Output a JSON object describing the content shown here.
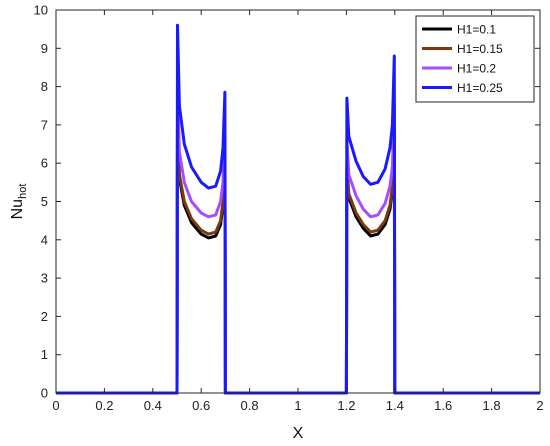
{
  "chart_data": {
    "type": "line",
    "title": "",
    "xlabel": "X",
    "ylabel_main": "Nu",
    "ylabel_sub": "hot",
    "xlim": [
      0,
      2
    ],
    "ylim": [
      0,
      10
    ],
    "xticks": [
      "0",
      "0.2",
      "0.4",
      "0.6",
      "0.8",
      "1",
      "1.2",
      "1.4",
      "1.6",
      "1.8",
      "2"
    ],
    "yticks": [
      "0",
      "1",
      "2",
      "3",
      "4",
      "5",
      "6",
      "7",
      "8",
      "9",
      "10"
    ],
    "grid": false,
    "legend_position": "top-right",
    "series": [
      {
        "name": "H1=0.1",
        "color": "#000000",
        "x": [
          0,
          0.5,
          0.502,
          0.51,
          0.53,
          0.56,
          0.6,
          0.63,
          0.66,
          0.68,
          0.69,
          0.698,
          0.7,
          1.2,
          1.202,
          1.21,
          1.24,
          1.27,
          1.3,
          1.33,
          1.36,
          1.38,
          1.39,
          1.398,
          1.4,
          2
        ],
        "y": [
          0,
          0,
          7.0,
          5.6,
          4.9,
          4.45,
          4.15,
          4.05,
          4.1,
          4.4,
          4.9,
          6.1,
          0,
          0,
          5.9,
          5.1,
          4.6,
          4.3,
          4.1,
          4.15,
          4.4,
          4.8,
          5.3,
          6.8,
          0,
          0
        ]
      },
      {
        "name": "H1=0.15",
        "color": "#7a3a0c",
        "x": [
          0,
          0.5,
          0.502,
          0.51,
          0.53,
          0.56,
          0.6,
          0.63,
          0.66,
          0.68,
          0.69,
          0.698,
          0.7,
          1.2,
          1.202,
          1.21,
          1.24,
          1.27,
          1.3,
          1.33,
          1.36,
          1.38,
          1.39,
          1.398,
          1.4,
          2
        ],
        "y": [
          0,
          0,
          7.1,
          5.7,
          5.0,
          4.55,
          4.25,
          4.15,
          4.2,
          4.5,
          5.0,
          6.2,
          0,
          0,
          6.0,
          5.2,
          4.7,
          4.4,
          4.2,
          4.25,
          4.5,
          4.9,
          5.4,
          6.9,
          0,
          0
        ]
      },
      {
        "name": "H1=0.2",
        "color": "#a64dff",
        "x": [
          0,
          0.5,
          0.502,
          0.51,
          0.53,
          0.56,
          0.6,
          0.63,
          0.66,
          0.68,
          0.69,
          0.698,
          0.7,
          1.2,
          1.202,
          1.21,
          1.24,
          1.27,
          1.3,
          1.33,
          1.36,
          1.38,
          1.39,
          1.398,
          1.4,
          2
        ],
        "y": [
          0,
          0,
          7.9,
          6.3,
          5.5,
          5.0,
          4.7,
          4.6,
          4.65,
          5.0,
          5.5,
          6.8,
          0,
          0,
          6.6,
          5.7,
          5.15,
          4.8,
          4.6,
          4.65,
          4.95,
          5.4,
          5.9,
          7.5,
          0,
          0
        ]
      },
      {
        "name": "H1=0.25",
        "color": "#1a1aff",
        "x": [
          0,
          0.5,
          0.502,
          0.51,
          0.53,
          0.56,
          0.6,
          0.63,
          0.66,
          0.68,
          0.69,
          0.698,
          0.7,
          1.2,
          1.202,
          1.21,
          1.24,
          1.27,
          1.3,
          1.33,
          1.36,
          1.38,
          1.39,
          1.398,
          1.4,
          2
        ],
        "y": [
          0,
          0,
          9.6,
          7.5,
          6.5,
          5.9,
          5.5,
          5.35,
          5.4,
          5.8,
          6.4,
          7.85,
          0,
          0,
          7.7,
          6.7,
          6.05,
          5.65,
          5.45,
          5.5,
          5.85,
          6.4,
          7.0,
          8.8,
          0,
          0
        ]
      }
    ]
  }
}
